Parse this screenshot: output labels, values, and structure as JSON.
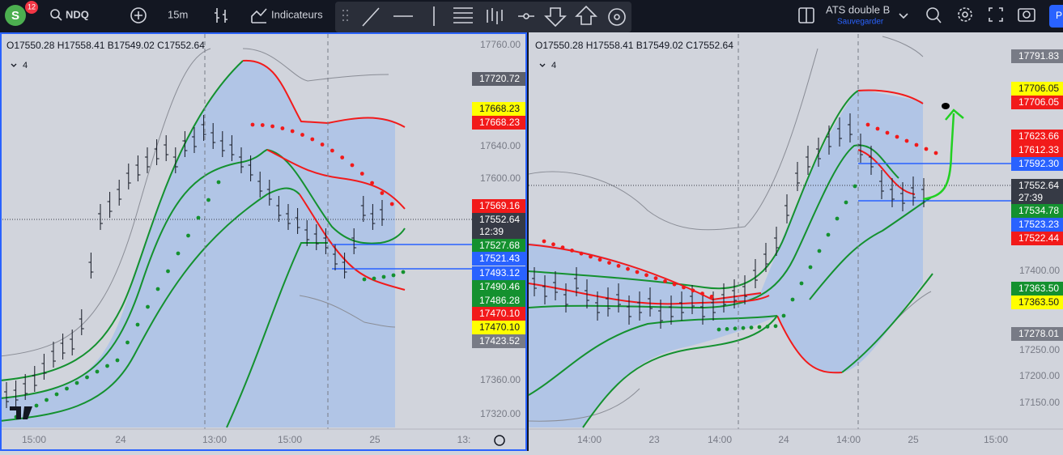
{
  "toolbar": {
    "avatar": "S",
    "badge": "12",
    "symbol": "NDQ",
    "interval": "15m",
    "indicators": "Indicateurs",
    "layout_name": "ATS double B",
    "save": "Sauvegarder",
    "publish": "P"
  },
  "panels": [
    {
      "legend": "O17550.28 H17558.41 B17549.02 C17552.64",
      "indicator_count": "4",
      "price_axis": [
        "17760.00",
        "17640.00",
        "17600.00",
        "17360.00",
        "17320.00"
      ],
      "badges": [
        {
          "label": "17720.72",
          "color": "#5d606b"
        },
        {
          "label": "17668.23",
          "color": "#ffff00"
        },
        {
          "label": "17668.23",
          "color": "#f21a1a"
        },
        {
          "label": "17569.16",
          "color": "#f21a1a"
        },
        {
          "label": "17552.64",
          "sub": "12:39",
          "color": "#363a45"
        },
        {
          "label": "17527.68",
          "color": "#14912f"
        },
        {
          "label": "17521.43",
          "color": "#2962ff"
        },
        {
          "label": "17493.12",
          "color": "#2962ff"
        },
        {
          "label": "17490.46",
          "color": "#14912f"
        },
        {
          "label": "17486.28",
          "color": "#14912f"
        },
        {
          "label": "17470.10",
          "color": "#f21a1a"
        },
        {
          "label": "17470.10",
          "color": "#ffff00"
        },
        {
          "label": "17423.52",
          "color": "#787b86"
        }
      ],
      "time_axis": [
        "15:00",
        "24",
        "13:00",
        "15:00",
        "25",
        "13:"
      ]
    },
    {
      "legend": "O17550.28 H17558.41 B17549.02 C17552.64",
      "indicator_count": "4",
      "price_axis": [
        "17400.00",
        "17250.00",
        "17200.00",
        "17150.00"
      ],
      "badges": [
        {
          "label": "17791.83",
          "color": "#787b86"
        },
        {
          "label": "17706.05",
          "color": "#ffff00"
        },
        {
          "label": "17706.05",
          "color": "#f21a1a"
        },
        {
          "label": "17623.66",
          "color": "#f21a1a"
        },
        {
          "label": "17612.33",
          "color": "#f21a1a"
        },
        {
          "label": "17592.30",
          "color": "#2962ff"
        },
        {
          "label": "17552.64",
          "sub": "27:39",
          "color": "#363a45"
        },
        {
          "label": "17534.78",
          "color": "#14912f"
        },
        {
          "label": "17523.23",
          "color": "#2962ff"
        },
        {
          "label": "17522.44",
          "color": "#f21a1a"
        },
        {
          "label": "17363.50",
          "color": "#14912f"
        },
        {
          "label": "17363.50",
          "color": "#ffff00"
        },
        {
          "label": "17278.01",
          "color": "#787b86"
        }
      ],
      "time_axis": [
        "14:00",
        "23",
        "14:00",
        "24",
        "14:00",
        "25",
        "15:00"
      ]
    }
  ]
}
